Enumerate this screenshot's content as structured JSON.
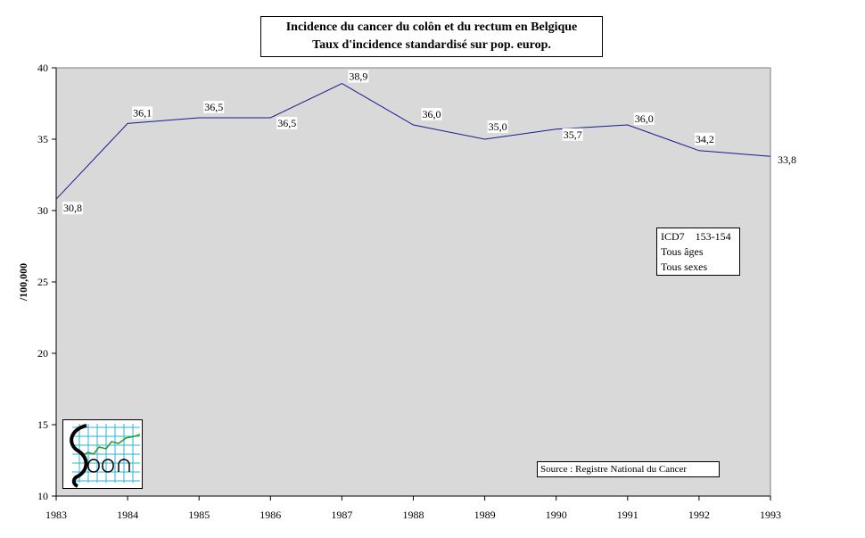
{
  "chart_data": {
    "type": "line",
    "title": "Incidence du cancer  du colôn et du rectum  en Belgique",
    "subtitle": "Taux d'incidence standardisé sur pop. europ.",
    "xlabel": "",
    "ylabel": "/100,000",
    "x": [
      "1983",
      "1984",
      "1985",
      "1986",
      "1987",
      "1988",
      "1989",
      "1990",
      "1991",
      "1992",
      "1993"
    ],
    "values": [
      30.8,
      36.1,
      36.5,
      36.5,
      38.9,
      36.0,
      35.0,
      35.7,
      36.0,
      34.2,
      33.8
    ],
    "data_labels": [
      "30,8",
      "36,1",
      "36,5",
      "36,5",
      "38,9",
      "36,0",
      "35,0",
      "35,7",
      "36,0",
      "34,2",
      "33,8"
    ],
    "ylim": [
      10,
      40
    ],
    "yticks": [
      10,
      15,
      20,
      25,
      30,
      35,
      40
    ],
    "grid": false,
    "plot_background": "#d9d9d9",
    "line_color": "#1a1a8c"
  },
  "info_box": [
    "ICD7    153-154",
    "Tous âges",
    "Tous sexes"
  ],
  "source": "Source : Registre National du Cancer",
  "logo_icon": "registry-logo-icon"
}
